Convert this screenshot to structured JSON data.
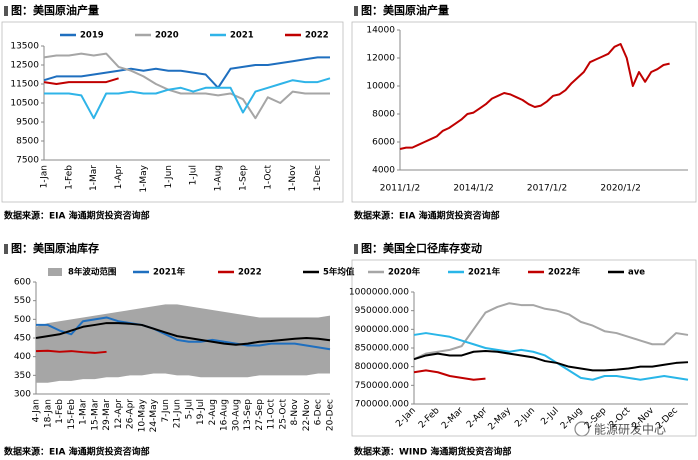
{
  "watermark": "能源研发中心",
  "chart_data": [
    {
      "type": "line",
      "title": "图：美国原油产量",
      "source": "数据来源：EIA  海通期货投资咨询部",
      "legend": "top",
      "categories": [
        "1-Jan",
        null,
        "1-Feb",
        null,
        "1-Mar",
        null,
        "1-Apr",
        null,
        "1-May",
        null,
        "1-Jun",
        null,
        "1-Jul",
        null,
        "1-Aug",
        null,
        "1-Sep",
        null,
        "1-Oct",
        null,
        "1-Nov",
        null,
        "1-Dec",
        null
      ],
      "ylim": [
        7500,
        13500
      ],
      "yticks": [
        7500,
        8500,
        9500,
        10500,
        11500,
        12500,
        13500
      ],
      "series": [
        {
          "name": "2019",
          "color": "#1f6fbf",
          "values": [
            11700,
            11900,
            11900,
            11900,
            12000,
            12100,
            12200,
            12300,
            12200,
            12300,
            12200,
            12200,
            12100,
            12000,
            11300,
            12300,
            12400,
            12500,
            12500,
            12600,
            12700,
            12800,
            12900,
            12900
          ]
        },
        {
          "name": "2020",
          "color": "#a6a6a6",
          "values": [
            12900,
            13000,
            13000,
            13100,
            13000,
            13100,
            12400,
            12200,
            11900,
            11500,
            11200,
            11000,
            11000,
            11000,
            10900,
            11000,
            10700,
            9700,
            10800,
            10500,
            11100,
            11000,
            11000,
            11000
          ]
        },
        {
          "name": "2021",
          "color": "#2fb4e8",
          "values": [
            11000,
            11000,
            11000,
            10900,
            9700,
            11000,
            11000,
            11100,
            11000,
            11000,
            11200,
            11300,
            11100,
            11300,
            11300,
            11300,
            10000,
            11100,
            11300,
            11500,
            11700,
            11600,
            11600,
            11800
          ]
        },
        {
          "name": "2022",
          "color": "#c00000",
          "values": [
            11600,
            11500,
            11600,
            11600,
            11600,
            11600,
            11800,
            null,
            null,
            null,
            null,
            null,
            null,
            null,
            null,
            null,
            null,
            null,
            null,
            null,
            null,
            null,
            null,
            null
          ]
        }
      ]
    },
    {
      "type": "line",
      "title": "图：美国原油产量",
      "source": "数据来源：EIA  海通期货投资咨询部",
      "categories": [
        "2011/1/2",
        null,
        null,
        null,
        null,
        null,
        null,
        null,
        null,
        null,
        null,
        null,
        "2014/1/2",
        null,
        null,
        null,
        null,
        null,
        null,
        null,
        null,
        null,
        null,
        null,
        "2017/1/2",
        null,
        null,
        null,
        null,
        null,
        null,
        null,
        null,
        null,
        null,
        null,
        "2020/1/2",
        null,
        null,
        null,
        null,
        null,
        null,
        null,
        null,
        null,
        null,
        null
      ],
      "ylim": [
        4000,
        14000
      ],
      "yticks": [
        4000,
        6000,
        8000,
        10000,
        12000,
        14000
      ],
      "series": [
        {
          "name": "产量",
          "color": "#c00000",
          "values": [
            5500,
            5600,
            5600,
            5800,
            6000,
            6200,
            6400,
            6800,
            7000,
            7300,
            7600,
            8000,
            8100,
            8400,
            8700,
            9100,
            9300,
            9500,
            9400,
            9200,
            9000,
            8700,
            8500,
            8600,
            8900,
            9300,
            9400,
            9700,
            10200,
            10600,
            11000,
            11700,
            11900,
            12100,
            12300,
            12800,
            13000,
            12000,
            10000,
            11000,
            10300,
            11000,
            11200,
            11500,
            11600,
            null,
            null,
            null
          ]
        }
      ]
    },
    {
      "type": "line",
      "title": "图：美国原油库存",
      "source": "数据来源：EIA  海通期货投资咨询部",
      "legend": "top",
      "categories": [
        "4-Jan",
        "18-Jan",
        "1-Feb",
        "15-Feb",
        "1-Mar",
        "15-Mar",
        "29-Mar",
        "12-Apr",
        "26-Apr",
        "10-May",
        "24-May",
        "7-Jun",
        "21-Jun",
        "5-Jul",
        "19-Jul",
        "2-Aug",
        "16-Aug",
        "30-Aug",
        "13-Sep",
        "27-Sep",
        "11-Oct",
        "25-Oct",
        "8-Nov",
        "22-Nov",
        "6-Dec",
        "20-Dec"
      ],
      "ylim": [
        300,
        600
      ],
      "yticks": [
        300,
        350,
        400,
        450,
        500,
        550,
        600
      ],
      "series": [
        {
          "name": "8年波动范围",
          "color": "#a6a6a6",
          "high": [
            480,
            490,
            495,
            500,
            505,
            510,
            515,
            520,
            525,
            530,
            535,
            540,
            540,
            535,
            530,
            525,
            520,
            515,
            510,
            505,
            505,
            505,
            505,
            505,
            505,
            510
          ],
          "low": [
            330,
            330,
            335,
            335,
            340,
            340,
            345,
            345,
            350,
            350,
            355,
            355,
            350,
            350,
            345,
            345,
            345,
            345,
            345,
            350,
            350,
            350,
            350,
            350,
            355,
            355
          ]
        },
        {
          "name": "2021年",
          "color": "#1f6fbf",
          "values": [
            485,
            485,
            470,
            460,
            495,
            500,
            505,
            495,
            490,
            485,
            475,
            460,
            445,
            440,
            440,
            445,
            440,
            435,
            430,
            430,
            435,
            435,
            435,
            430,
            425,
            420
          ]
        },
        {
          "name": "2022",
          "color": "#c00000",
          "values": [
            415,
            416,
            413,
            415,
            412,
            410,
            413,
            null,
            null,
            null,
            null,
            null,
            null,
            null,
            null,
            null,
            null,
            null,
            null,
            null,
            null,
            null,
            null,
            null,
            null,
            null
          ]
        },
        {
          "name": "5年均值",
          "color": "#000000",
          "values": [
            450,
            455,
            460,
            470,
            480,
            485,
            490,
            490,
            488,
            485,
            475,
            465,
            455,
            450,
            445,
            440,
            435,
            432,
            435,
            440,
            442,
            445,
            448,
            450,
            448,
            444
          ]
        }
      ]
    },
    {
      "type": "line",
      "title": "图：美国全口径库存变动",
      "source": "数据来源：WIND  海通期货投资咨询部",
      "legend": "top",
      "categories": [
        "2-Jan",
        null,
        "2-Feb",
        null,
        "2-Mar",
        null,
        "2-Apr",
        null,
        "2-May",
        null,
        "2-Jun",
        null,
        "2-Jul",
        null,
        "2-Aug",
        null,
        "2-Sep",
        null,
        "2-Oct",
        null,
        "2-Nov",
        null,
        "2-Dec",
        null
      ],
      "ylim": [
        700000,
        1000000
      ],
      "yticks": [
        {
          "value": 700000,
          "label": "700000.000"
        },
        {
          "value": 750000,
          "label": "750000.000"
        },
        {
          "value": 800000,
          "label": "800000.000"
        },
        {
          "value": 850000,
          "label": "850000.000"
        },
        {
          "value": 900000,
          "label": "900000.000"
        },
        {
          "value": 950000,
          "label": "950000.000"
        },
        {
          "value": 1000000,
          "label": "1000000.000"
        }
      ],
      "series": [
        {
          "name": "2020年",
          "color": "#a6a6a6",
          "values": [
            820000,
            835000,
            840000,
            845000,
            855000,
            900000,
            945000,
            960000,
            970000,
            965000,
            965000,
            955000,
            950000,
            940000,
            920000,
            910000,
            895000,
            890000,
            880000,
            870000,
            860000,
            860000,
            890000,
            885000
          ]
        },
        {
          "name": "2021年",
          "color": "#29b6e8",
          "values": [
            885000,
            890000,
            885000,
            880000,
            870000,
            860000,
            850000,
            845000,
            840000,
            845000,
            840000,
            830000,
            810000,
            790000,
            770000,
            765000,
            775000,
            775000,
            770000,
            765000,
            770000,
            775000,
            770000,
            765000
          ]
        },
        {
          "name": "2022年",
          "color": "#c00000",
          "values": [
            785000,
            790000,
            785000,
            775000,
            770000,
            765000,
            768000,
            null,
            null,
            null,
            null,
            null,
            null,
            null,
            null,
            null,
            null,
            null,
            null,
            null,
            null,
            null,
            null,
            null
          ]
        },
        {
          "name": "ave",
          "color": "#000000",
          "values": [
            820000,
            830000,
            835000,
            830000,
            830000,
            840000,
            842000,
            840000,
            835000,
            830000,
            825000,
            815000,
            810000,
            800000,
            795000,
            790000,
            790000,
            792000,
            795000,
            800000,
            800000,
            805000,
            810000,
            812000
          ]
        }
      ]
    }
  ]
}
